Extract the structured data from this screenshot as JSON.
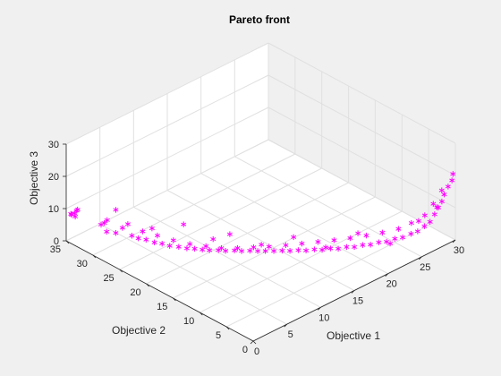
{
  "chart_data": {
    "type": "scatter",
    "title": "Pareto front",
    "xlabel": "Objective 1",
    "ylabel": "Objective 2",
    "zlabel": "Objective 3",
    "xlim": [
      0,
      30
    ],
    "ylim": [
      0,
      35
    ],
    "zlim": [
      0,
      30
    ],
    "xticks": [
      0,
      5,
      10,
      15,
      20,
      25,
      30
    ],
    "yticks": [
      0,
      5,
      10,
      15,
      20,
      25,
      30,
      35
    ],
    "zticks": [
      0,
      10,
      20,
      30
    ],
    "grid": true,
    "marker": "*",
    "marker_color": "#ff00ff",
    "series": [
      {
        "x": [
          0.0,
          0.3,
          0.5,
          0.7,
          0.6,
          0.9,
          2.0,
          2.5,
          2.8,
          2.2,
          3.0,
          3.6,
          4.2,
          4.0,
          4.6,
          5.2,
          5.0,
          5.8,
          6.3,
          6.0,
          6.8,
          7.5,
          7.1,
          8.0,
          8.6,
          8.2,
          9.1,
          9.6,
          9.4,
          10.3,
          10.8,
          10.5,
          11.5,
          12.0,
          11.7,
          12.6,
          13.2,
          12.9,
          13.7,
          14.4,
          14.0,
          15.0,
          15.6,
          15.3,
          16.2,
          16.8,
          16.5,
          17.4,
          18.0,
          17.7,
          18.6,
          19.2,
          18.9,
          19.8,
          20.4,
          20.1,
          21.0,
          21.6,
          21.3,
          22.2,
          22.8,
          22.5,
          23.4,
          24.0,
          23.7,
          24.6,
          25.2,
          24.9,
          25.8,
          26.4,
          26.1,
          27.0,
          27.5,
          27.2,
          28.0,
          28.5,
          28.3,
          29.0,
          29.5,
          29.8,
          3.4,
          5.6,
          7.9,
          9.9,
          11.2,
          13.5,
          15.9,
          18.3,
          20.7,
          23.1,
          25.5,
          27.8
        ],
        "y": [
          34.0,
          34.5,
          33.5,
          34.2,
          33.8,
          34.6,
          31.0,
          30.5,
          31.4,
          30.2,
          29.5,
          29.0,
          28.0,
          28.5,
          27.3,
          26.6,
          27.0,
          25.8,
          25.0,
          25.5,
          24.2,
          23.4,
          23.9,
          22.5,
          21.8,
          22.2,
          21.0,
          20.3,
          20.7,
          19.5,
          18.8,
          19.2,
          18.0,
          17.3,
          17.7,
          16.5,
          15.8,
          16.2,
          15.0,
          14.3,
          14.7,
          13.5,
          12.8,
          13.2,
          12.0,
          11.3,
          11.7,
          10.5,
          9.8,
          10.2,
          9.0,
          8.3,
          8.7,
          7.5,
          6.8,
          7.2,
          6.0,
          5.3,
          5.7,
          4.5,
          3.8,
          4.2,
          3.0,
          2.3,
          2.7,
          1.5,
          1.0,
          1.8,
          0.5,
          0.2,
          0.8,
          0.1,
          0.3,
          0.6,
          0.0,
          0.2,
          0.4,
          0.1,
          0.0,
          0.2,
          30.0,
          26.0,
          23.0,
          20.0,
          18.5,
          15.5,
          12.5,
          9.5,
          6.5,
          3.5,
          1.2,
          0.4
        ],
        "z": [
          9.0,
          8.5,
          10.5,
          7.5,
          9.8,
          8.0,
          6.5,
          7.8,
          5.8,
          4.8,
          4.2,
          5.6,
          3.4,
          6.8,
          2.8,
          2.4,
          4.8,
          1.6,
          1.4,
          3.8,
          0.9,
          0.6,
          2.6,
          0.4,
          0.3,
          1.8,
          0.2,
          0.1,
          1.2,
          0.1,
          0.0,
          0.8,
          0.1,
          0.0,
          0.9,
          0.2,
          0.1,
          1.2,
          0.3,
          0.2,
          1.6,
          0.4,
          0.3,
          2.0,
          0.6,
          0.5,
          2.6,
          0.9,
          0.8,
          3.2,
          1.3,
          1.2,
          3.8,
          1.8,
          1.8,
          4.5,
          2.5,
          2.6,
          5.4,
          3.4,
          3.6,
          6.4,
          4.6,
          5.0,
          7.6,
          6.2,
          6.8,
          9.0,
          8.2,
          9.2,
          11.0,
          11.0,
          12.5,
          13.6,
          14.0,
          15.5,
          16.8,
          17.5,
          19.0,
          20.5,
          10.5,
          6.0,
          7.5,
          3.5,
          5.0,
          2.0,
          4.5,
          1.5,
          6.0,
          3.0,
          9.5,
          12.0
        ]
      }
    ]
  }
}
